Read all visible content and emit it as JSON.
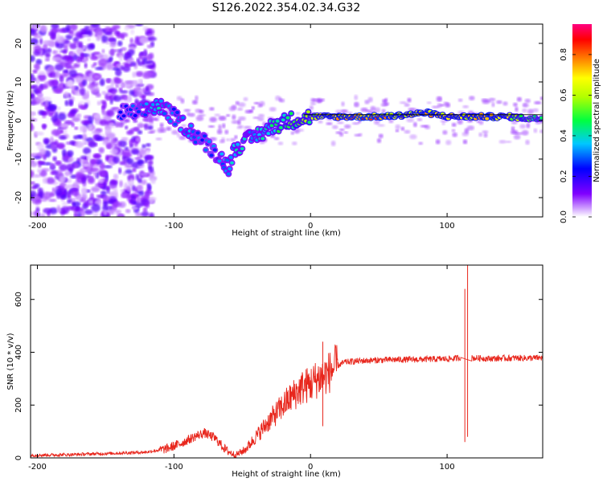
{
  "title": "S126.2022.354.02.34.G32",
  "chart_data": [
    {
      "type": "heatmap",
      "xlabel": "Height of straight line (km)",
      "ylabel": "Frequency (Hz)",
      "xlim": [
        -205,
        170
      ],
      "ylim": [
        -25,
        25
      ],
      "xticks": [
        -200,
        -100,
        0,
        100
      ],
      "yticks": [
        -20,
        -10,
        0,
        10,
        20
      ],
      "colorbar": {
        "label": "Normalized spectral amplitude",
        "range": [
          0,
          0.95
        ],
        "ticks": [
          0.0,
          0.2,
          0.4,
          0.6,
          0.8
        ],
        "tick_labels": [
          "0.0",
          "0.2",
          "0.4",
          "0.6",
          "0.8"
        ]
      },
      "ridge": [
        {
          "x": -140,
          "y": 2,
          "amp": 0.25
        },
        {
          "x": -125,
          "y": 2,
          "amp": 0.3
        },
        {
          "x": -112,
          "y": 4,
          "amp": 0.38
        },
        {
          "x": -100,
          "y": 1,
          "amp": 0.3
        },
        {
          "x": -90,
          "y": -2,
          "amp": 0.35
        },
        {
          "x": -80,
          "y": -5,
          "amp": 0.3
        },
        {
          "x": -70,
          "y": -8,
          "amp": 0.3
        },
        {
          "x": -60,
          "y": -12,
          "amp": 0.35
        },
        {
          "x": -55,
          "y": -7,
          "amp": 0.4
        },
        {
          "x": -45,
          "y": -5,
          "amp": 0.35
        },
        {
          "x": -35,
          "y": -3,
          "amp": 0.4
        },
        {
          "x": -25,
          "y": -1,
          "amp": 0.45
        },
        {
          "x": -15,
          "y": 0,
          "amp": 0.5
        },
        {
          "x": 0,
          "y": 1,
          "amp": 0.55
        },
        {
          "x": 10,
          "y": 1,
          "amp": 0.65
        },
        {
          "x": 25,
          "y": 1,
          "amp": 0.75
        },
        {
          "x": 40,
          "y": 1,
          "amp": 0.8
        },
        {
          "x": 55,
          "y": 1,
          "amp": 0.75
        },
        {
          "x": 70,
          "y": 1.5,
          "amp": 0.7
        },
        {
          "x": 85,
          "y": 2,
          "amp": 0.75
        },
        {
          "x": 100,
          "y": 1,
          "amp": 0.65
        },
        {
          "x": 115,
          "y": 1,
          "amp": 0.7
        },
        {
          "x": 130,
          "y": 1,
          "amp": 0.75
        },
        {
          "x": 145,
          "y": 1,
          "amp": 0.65
        },
        {
          "x": 160,
          "y": 0.5,
          "amp": 0.5
        },
        {
          "x": 170,
          "y": 0.5,
          "amp": 0.45
        }
      ],
      "reference_line_y": 1.5
    },
    {
      "type": "line",
      "xlabel": "Height of straight line (km)",
      "ylabel": "SNR (10 * v/v)",
      "xlim": [
        -205,
        170
      ],
      "ylim": [
        0,
        730
      ],
      "xticks": [
        -200,
        -100,
        0,
        100
      ],
      "yticks": [
        0,
        200,
        400,
        600
      ],
      "color": "#e8261c",
      "x": [
        -205,
        -180,
        -160,
        -140,
        -120,
        -105,
        -95,
        -85,
        -78,
        -70,
        -62,
        -55,
        -48,
        -40,
        -32,
        -25,
        -18,
        -10,
        -5,
        0,
        5,
        10,
        15,
        20,
        25,
        30,
        40,
        50,
        60,
        70,
        80,
        90,
        100,
        105,
        110,
        112,
        114,
        115,
        116,
        118,
        122,
        130,
        140,
        150,
        160,
        170
      ],
      "y": [
        10,
        12,
        15,
        18,
        22,
        35,
        55,
        80,
        95,
        75,
        30,
        10,
        30,
        80,
        130,
        170,
        210,
        250,
        270,
        280,
        300,
        310,
        330,
        350,
        362,
        365,
        368,
        370,
        372,
        372,
        373,
        374,
        375,
        376,
        380,
        640,
        80,
        700,
        380,
        378,
        378,
        376,
        377,
        378,
        378,
        379
      ],
      "spikes": [
        {
          "x": 9,
          "low": 120,
          "high": 440
        },
        {
          "x": 113,
          "low": 60,
          "high": 640
        },
        {
          "x": 115,
          "low": 80,
          "high": 730
        }
      ]
    }
  ]
}
